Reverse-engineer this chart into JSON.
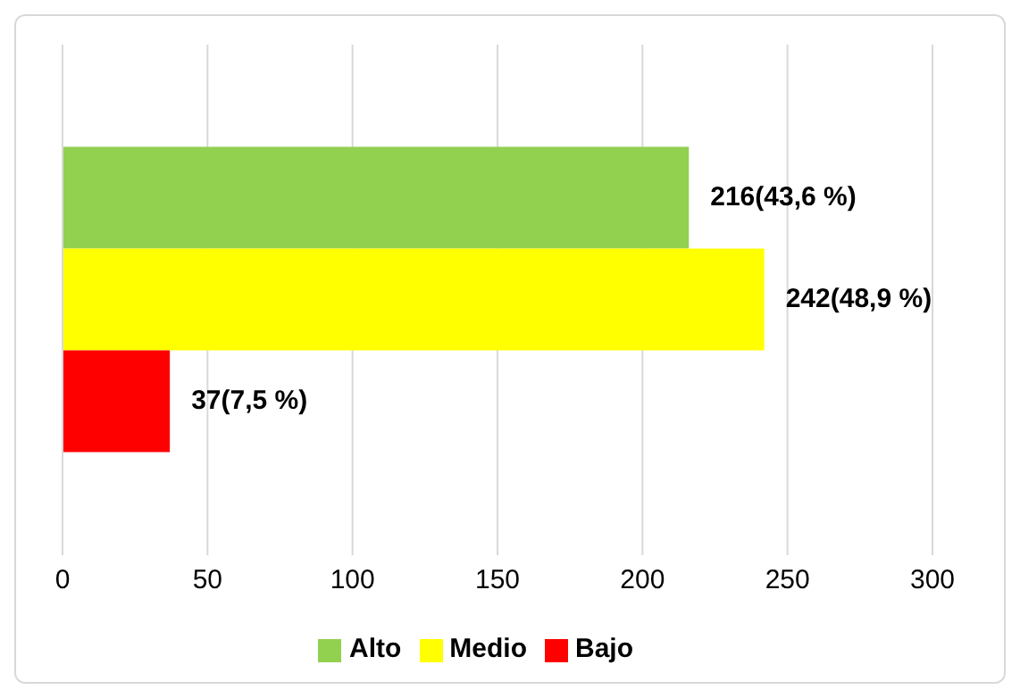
{
  "chart_data": {
    "type": "bar",
    "orientation": "horizontal",
    "categories": [
      null
    ],
    "series": [
      {
        "name": "Alto",
        "color": "#92d050",
        "values": [
          216
        ],
        "value_labels": [
          "216(43,6 %)"
        ]
      },
      {
        "name": "Medio",
        "color": "#ffff00",
        "values": [
          242
        ],
        "value_labels": [
          "242(48,9 %)"
        ]
      },
      {
        "name": "Bajo",
        "color": "#ff0000",
        "values": [
          37
        ],
        "value_labels": [
          "37(7,5 %)"
        ]
      }
    ],
    "xlim": [
      0,
      300
    ],
    "xticks": [
      0,
      50,
      100,
      150,
      200,
      250,
      300
    ],
    "grid": "x",
    "legend": "bottom"
  }
}
